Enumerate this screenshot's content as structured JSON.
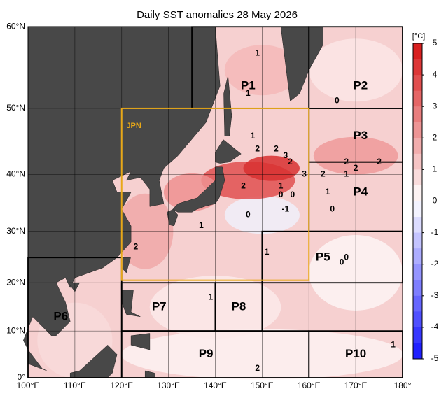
{
  "title": "Daily SST anomalies 28 May 2026",
  "lon_ticks": [
    {
      "value": 100,
      "label": "100°E"
    },
    {
      "value": 110,
      "label": "110°E"
    },
    {
      "value": 120,
      "label": "120°E"
    },
    {
      "value": 130,
      "label": "130°E"
    },
    {
      "value": 140,
      "label": "140°E"
    },
    {
      "value": 150,
      "label": "150°E"
    },
    {
      "value": 160,
      "label": "160°E"
    },
    {
      "value": 170,
      "label": "170°E"
    },
    {
      "value": 180,
      "label": "180°"
    }
  ],
  "lat_ticks": [
    {
      "value": 0,
      "label": "0°"
    },
    {
      "value": 10,
      "label": "10°N"
    },
    {
      "value": 20,
      "label": "20°N"
    },
    {
      "value": 30,
      "label": "30°N"
    },
    {
      "value": 40,
      "label": "40°N"
    },
    {
      "value": 50,
      "label": "50°N"
    },
    {
      "value": 60,
      "label": "60°N"
    }
  ],
  "regions": [
    "P1",
    "P2",
    "P3",
    "P4",
    "P5",
    "P6",
    "P7",
    "P8",
    "P9",
    "P10",
    "JPN"
  ],
  "colorbar": {
    "unit": "[°C]",
    "ticks": [
      5,
      4,
      3,
      2,
      1,
      0,
      -1,
      -2,
      -3,
      -4,
      -5
    ]
  },
  "contour_labels": [
    1,
    1,
    0,
    1,
    2,
    2,
    2,
    3,
    2,
    2,
    3,
    2,
    1,
    2,
    2,
    1,
    0,
    0,
    -1,
    0,
    1,
    0,
    1,
    2,
    1,
    0,
    1,
    0,
    2,
    1
  ]
}
